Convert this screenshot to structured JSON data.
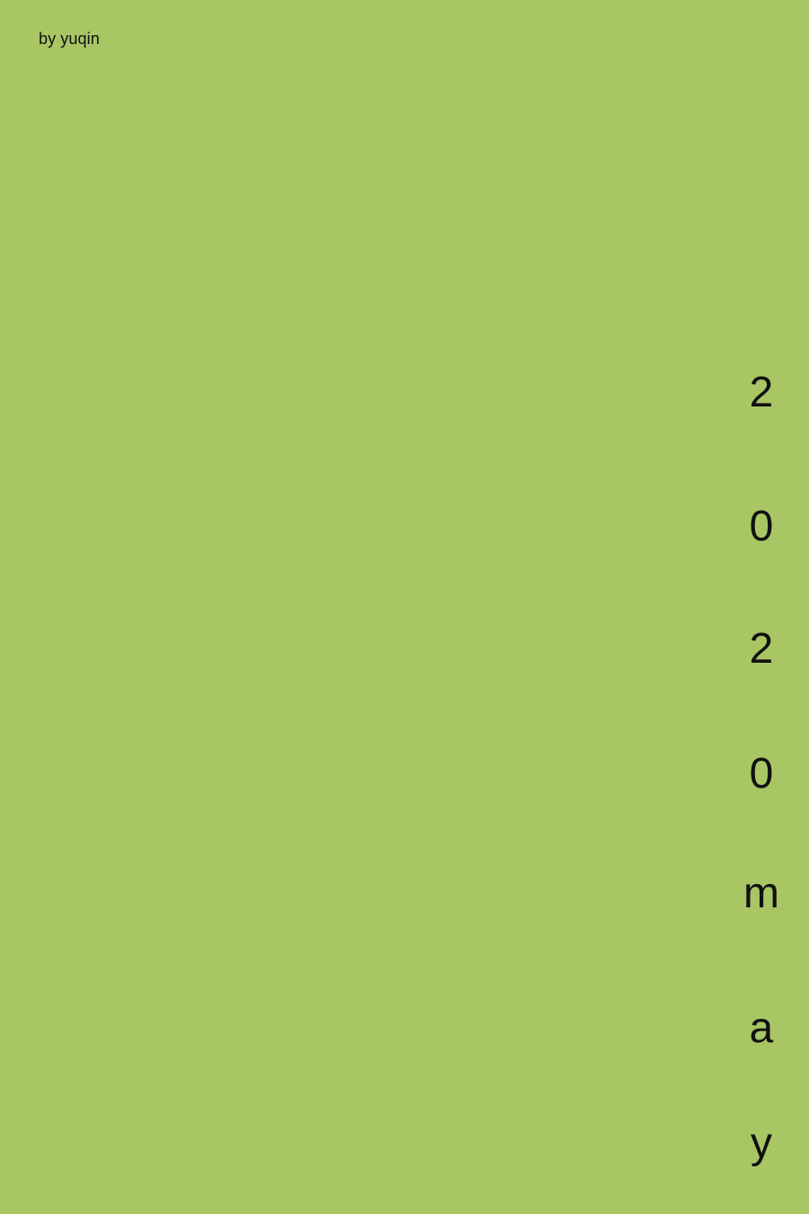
{
  "credit": "by yuqin",
  "vertical_title": {
    "characters": [
      "2",
      "0",
      "2",
      "0",
      "m",
      "a",
      "y"
    ]
  },
  "colors": {
    "background": "#a8c664",
    "text": "#111111"
  }
}
